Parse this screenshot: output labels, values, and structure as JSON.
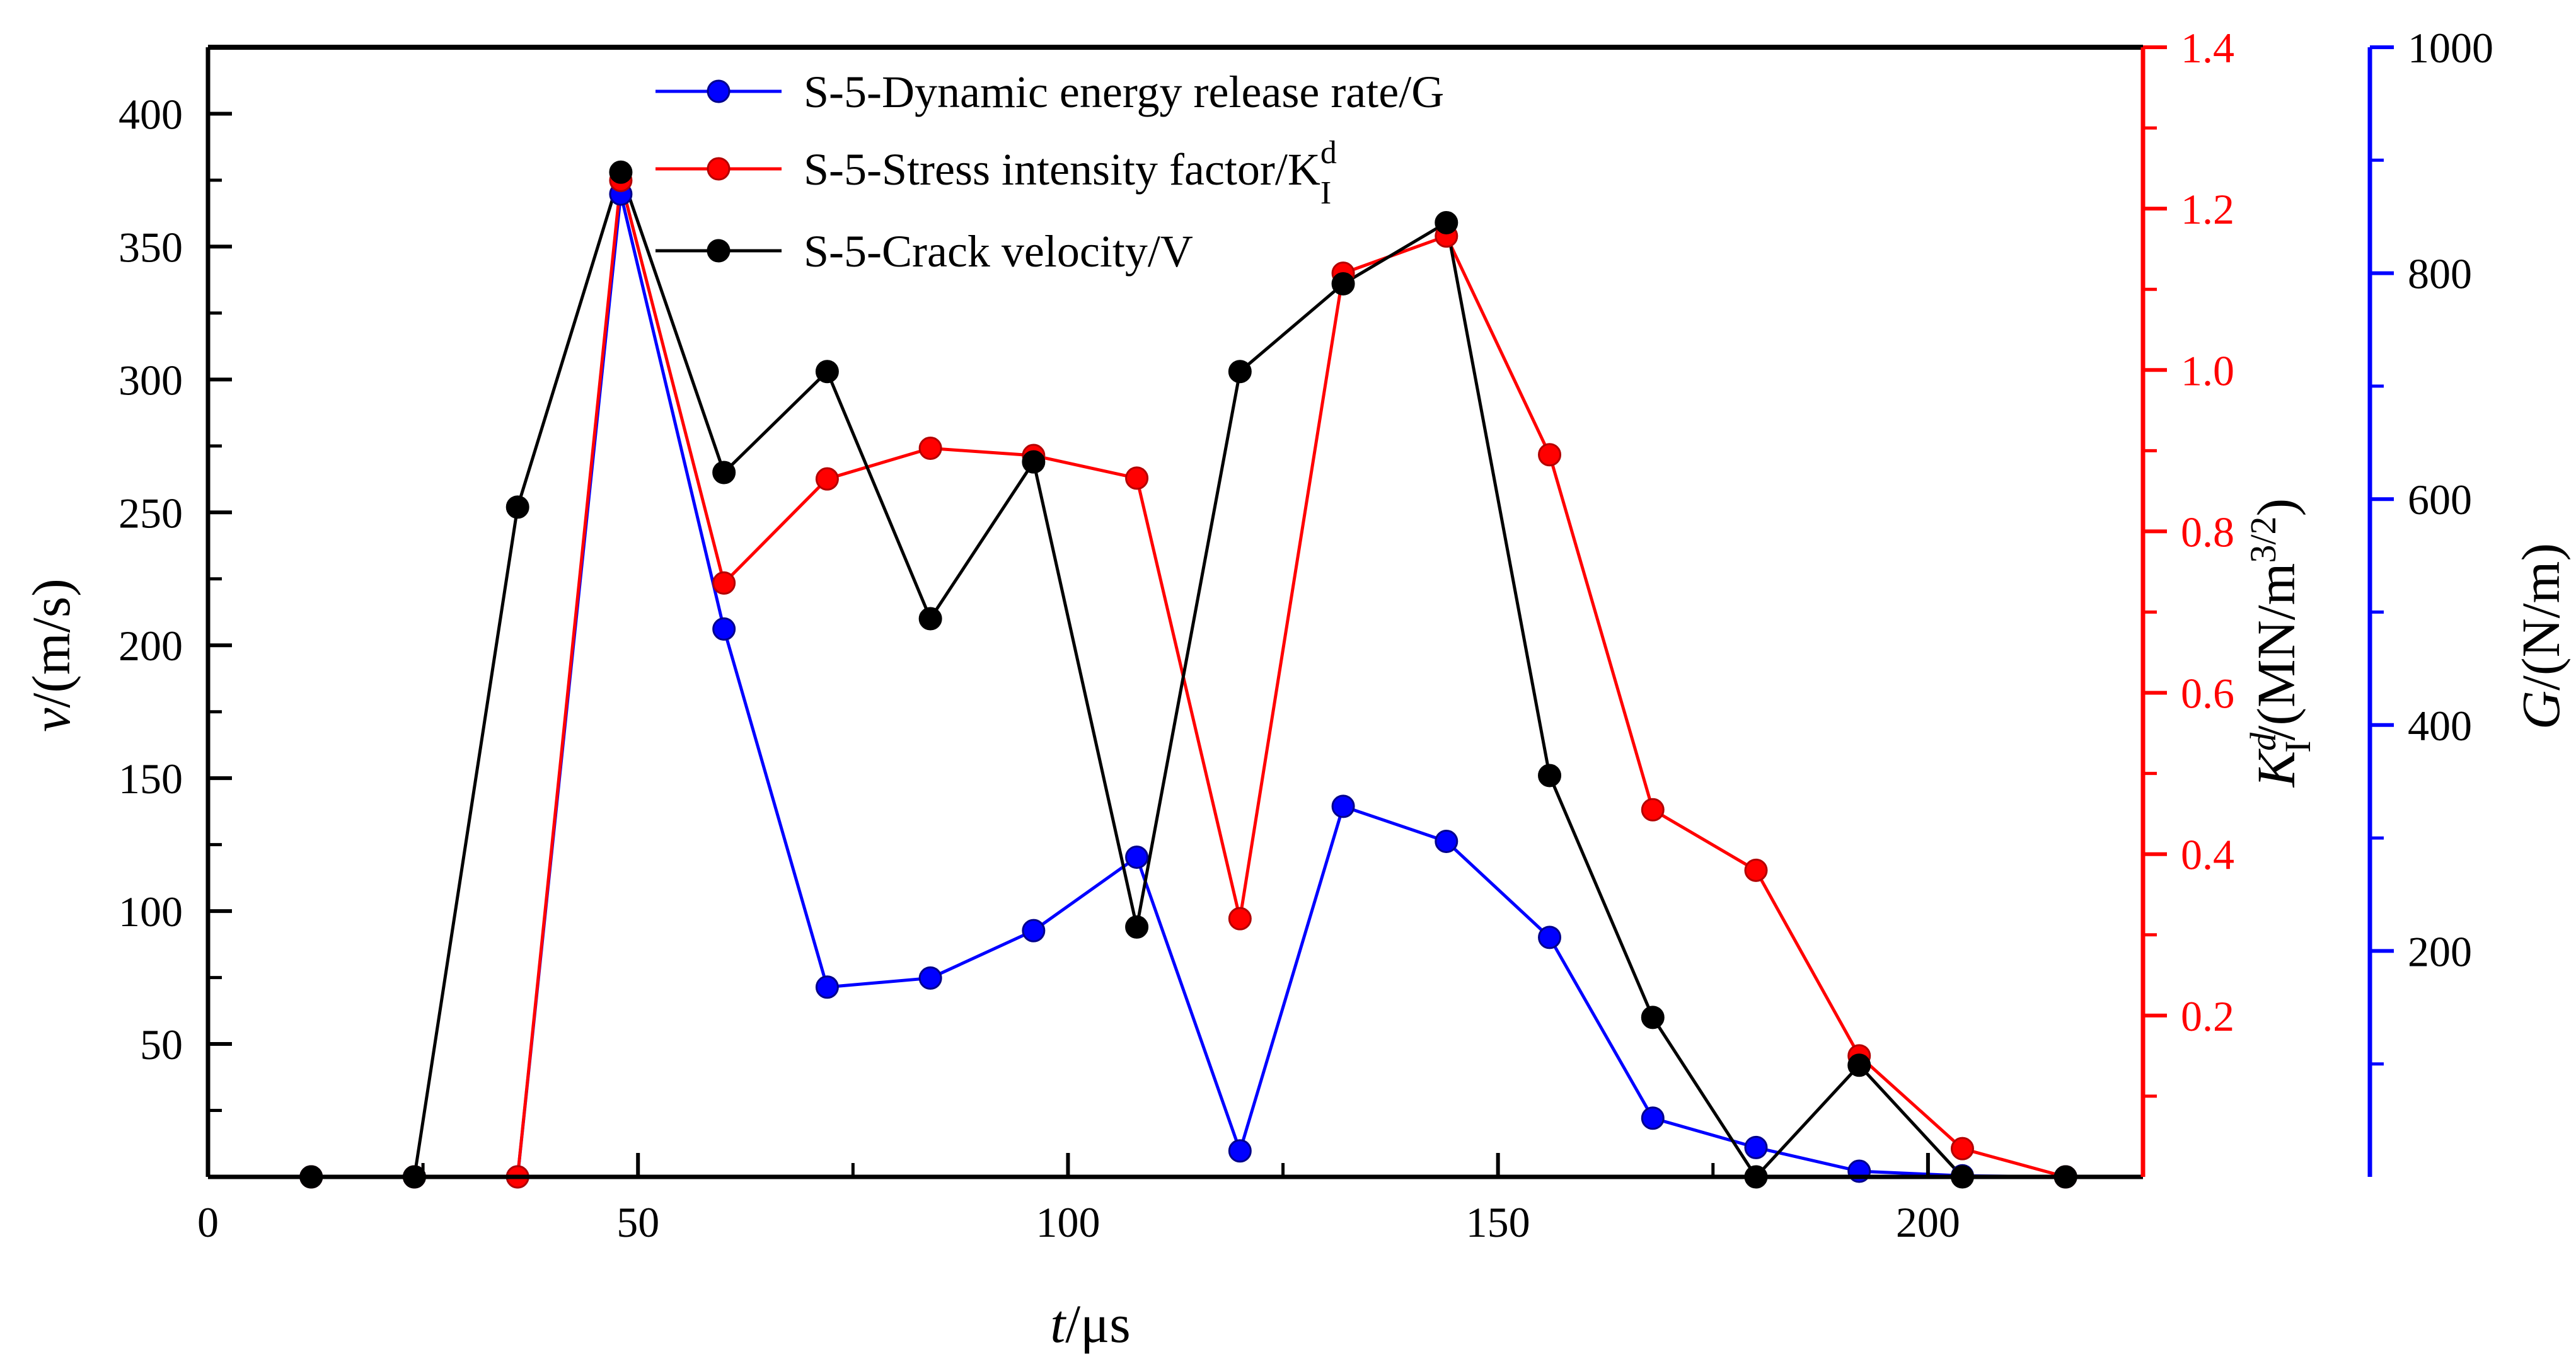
{
  "chart_data": {
    "type": "line",
    "x": [
      12,
      24,
      36,
      48,
      60,
      72,
      84,
      96,
      108,
      120,
      132,
      144,
      156,
      168,
      180,
      192,
      204,
      216
    ],
    "xlabel": "t/μs",
    "xlim": [
      0,
      225
    ],
    "xticks": [
      "0",
      "50",
      "100",
      "150",
      "200"
    ],
    "xtick_values": [
      0,
      50,
      100,
      150,
      200
    ],
    "axes": {
      "v": {
        "label": "v/(m/s)",
        "color": "#000000",
        "ylim": [
          0,
          425
        ],
        "ticks": [
          "50",
          "100",
          "150",
          "200",
          "250",
          "300",
          "350",
          "400"
        ],
        "tick_values": [
          50,
          100,
          150,
          200,
          250,
          300,
          350,
          400
        ]
      },
      "K": {
        "label": "KdI/(MN/m3/2)",
        "color": "#ff0000",
        "ylim": [
          0,
          1.4
        ],
        "ticks": [
          "0.2",
          "0.4",
          "0.6",
          "0.8",
          "1.0",
          "1.2",
          "1.4"
        ],
        "tick_values": [
          0.2,
          0.4,
          0.6,
          0.8,
          1.0,
          1.2,
          1.4
        ]
      },
      "G": {
        "label": "G/(N/m)",
        "color": "#0000ff",
        "ylim": [
          0,
          1000
        ],
        "ticks": [
          "200",
          "400",
          "600",
          "800",
          "1000"
        ],
        "tick_values": [
          200,
          400,
          600,
          800,
          1000
        ]
      }
    },
    "series": [
      {
        "name": "S-5-Dynamic energy release rate/G",
        "axis": "G",
        "color": "#0000ff",
        "values": [
          0,
          0,
          0,
          870,
          485,
          168,
          176,
          218,
          283,
          23,
          328,
          297,
          212,
          52,
          26,
          5,
          1,
          0
        ]
      },
      {
        "name": "S-5-Stress intensity factor/K",
        "name_sup": "d",
        "name_sub": "I",
        "axis": "K",
        "color": "#ff0000",
        "values": [
          0,
          0,
          0,
          1.235,
          0.736,
          0.865,
          0.903,
          0.894,
          0.866,
          0.32,
          1.12,
          1.166,
          0.895,
          0.455,
          0.38,
          0.15,
          0.035,
          0.0
        ]
      },
      {
        "name": "S-5-Crack velocity/V",
        "axis": "v",
        "color": "#000000",
        "values": [
          0,
          0,
          252,
          378,
          265,
          303,
          210,
          269,
          94,
          303,
          336,
          359,
          151,
          60,
          0,
          42,
          0,
          0
        ]
      }
    ],
    "legend_position": "top-center",
    "grid": false
  }
}
